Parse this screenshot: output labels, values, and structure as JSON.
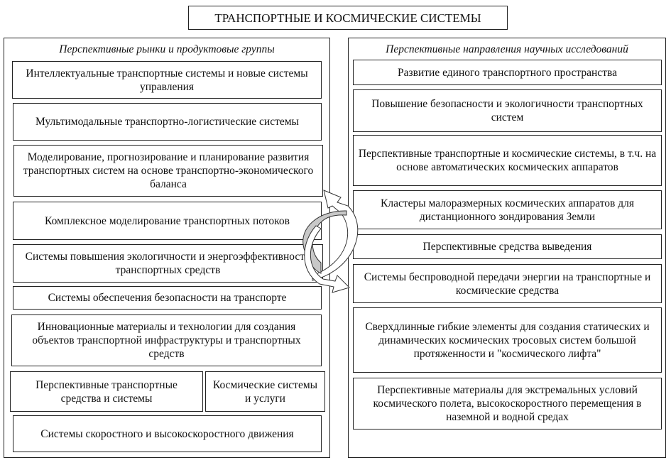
{
  "title": "ТРАНСПОРТНЫЕ И КОСМИЧЕСКИЕ СИСТЕМЫ",
  "left": {
    "header": "Перспективные рынки и продуктовые группы",
    "items": [
      "Интеллектуальные транспортные системы и новые системы управления",
      "Мультимодальные транспортно-логистические системы",
      "Моделирование, прогнозирование и планирование развития транспортных систем на основе транспортно-экономического баланса",
      "Комплексное моделирование транспортных потоков",
      "Системы повышения экологичности и энергоэффективности транспортных средств",
      "Системы обеспечения безопасности на транспорте",
      "Инновационные материалы и технологии для создания объектов транспортной инфраструктуры и транспортных средств",
      "Перспективные транспортные средства и системы",
      "Космические системы и услуги",
      "Системы скоростного и высокоскоростного движения"
    ]
  },
  "right": {
    "header": "Перспективные направления научных исследований",
    "items": [
      "Развитие единого транспортного пространства",
      "Повышение безопасности и экологичности транспортных систем",
      "Перспективные транспортные и космические системы, в т.ч. на основе автоматических космических аппаратов",
      "Кластеры малоразмерных космических аппаратов для дистанционного зондирования Земли",
      "Перспективные средства выведения",
      "Системы беспроводной передачи энергии на транспортные и космические средства",
      "Сверхдлинные гибкие элементы для создания статических и динамических космических тросовых систем большой протяженности и \"космического лифта\"",
      "Перспективные материалы для экстремальных условий космического полета, высокоскоростного перемещения в наземной и водной средах"
    ]
  },
  "colors": {
    "border": "#222222",
    "arrow_fill": "#c8c8c8"
  }
}
